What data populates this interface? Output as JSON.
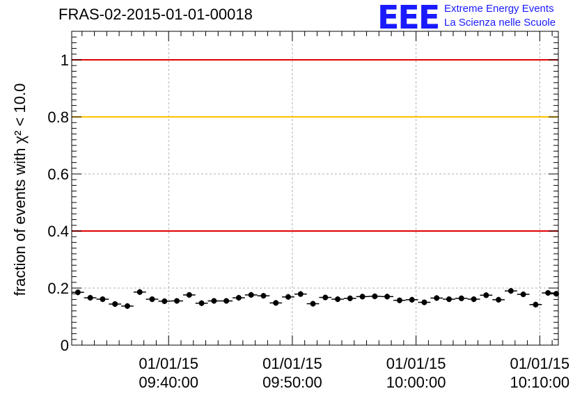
{
  "title": "FRAS-02-2015-01-01-00018",
  "logo": {
    "mark": "EEE",
    "line1": "Extreme Energy Events",
    "line2": "La Scienza nelle Scuole",
    "color": "#1a1aff"
  },
  "chart_data": {
    "type": "scatter",
    "ylabel": "fraction of events with χ² < 10.0",
    "xlabel": "",
    "ylim": [
      0,
      1.1
    ],
    "yticks": [
      {
        "value": 0,
        "label": "0"
      },
      {
        "value": 0.2,
        "label": "0.2"
      },
      {
        "value": 0.4,
        "label": "0.4"
      },
      {
        "value": 0.6,
        "label": "0.6"
      },
      {
        "value": 0.8,
        "label": "0.8"
      },
      {
        "value": 1,
        "label": "1"
      }
    ],
    "xlim": [
      "09:32:10",
      "10:11:30"
    ],
    "xticks": [
      {
        "value": "09:40:00",
        "label_date": "01/01/15",
        "label_time": "09:40:00"
      },
      {
        "value": "09:50:00",
        "label_date": "01/01/15",
        "label_time": "09:50:00"
      },
      {
        "value": "10:00:00",
        "label_date": "01/01/15",
        "label_time": "10:00:00"
      },
      {
        "value": "10:10:00",
        "label_date": "01/01/15",
        "label_time": "10:10:00"
      }
    ],
    "grid": true,
    "reference_lines": [
      {
        "y": 1.0,
        "color": "#e00000"
      },
      {
        "y": 0.8,
        "color": "#ffc000"
      },
      {
        "y": 0.4,
        "color": "#e00000"
      }
    ],
    "bin_width_seconds": 60,
    "series": [
      {
        "x": [
          "09:32:40",
          "09:33:40",
          "09:34:40",
          "09:35:40",
          "09:36:40",
          "09:37:40",
          "09:38:40",
          "09:39:40",
          "09:40:40",
          "09:41:40",
          "09:42:40",
          "09:43:40",
          "09:44:40",
          "09:45:40",
          "09:46:40",
          "09:47:40",
          "09:48:40",
          "09:49:40",
          "09:50:40",
          "09:51:40",
          "09:52:40",
          "09:53:40",
          "09:54:40",
          "09:55:40",
          "09:56:40",
          "09:57:40",
          "09:58:40",
          "09:59:40",
          "10:00:40",
          "10:01:40",
          "10:02:40",
          "10:03:40",
          "10:04:40",
          "10:05:40",
          "10:06:40",
          "10:07:40",
          "10:08:40",
          "10:09:40",
          "10:10:40",
          "10:11:20"
        ],
        "values": [
          0.185,
          0.166,
          0.161,
          0.144,
          0.137,
          0.186,
          0.161,
          0.154,
          0.155,
          0.176,
          0.147,
          0.155,
          0.155,
          0.166,
          0.176,
          0.173,
          0.148,
          0.169,
          0.179,
          0.145,
          0.167,
          0.161,
          0.164,
          0.17,
          0.171,
          0.17,
          0.157,
          0.159,
          0.15,
          0.165,
          0.161,
          0.164,
          0.161,
          0.175,
          0.159,
          0.19,
          0.178,
          0.142,
          0.183,
          0.18
        ],
        "errors": [
          0.01,
          0.01,
          0.01,
          0.01,
          0.01,
          0.01,
          0.01,
          0.01,
          0.01,
          0.01,
          0.01,
          0.01,
          0.01,
          0.01,
          0.01,
          0.01,
          0.01,
          0.01,
          0.01,
          0.01,
          0.01,
          0.01,
          0.01,
          0.01,
          0.01,
          0.01,
          0.01,
          0.01,
          0.01,
          0.01,
          0.01,
          0.01,
          0.01,
          0.01,
          0.01,
          0.01,
          0.01,
          0.01,
          0.01,
          0.01
        ]
      }
    ]
  }
}
